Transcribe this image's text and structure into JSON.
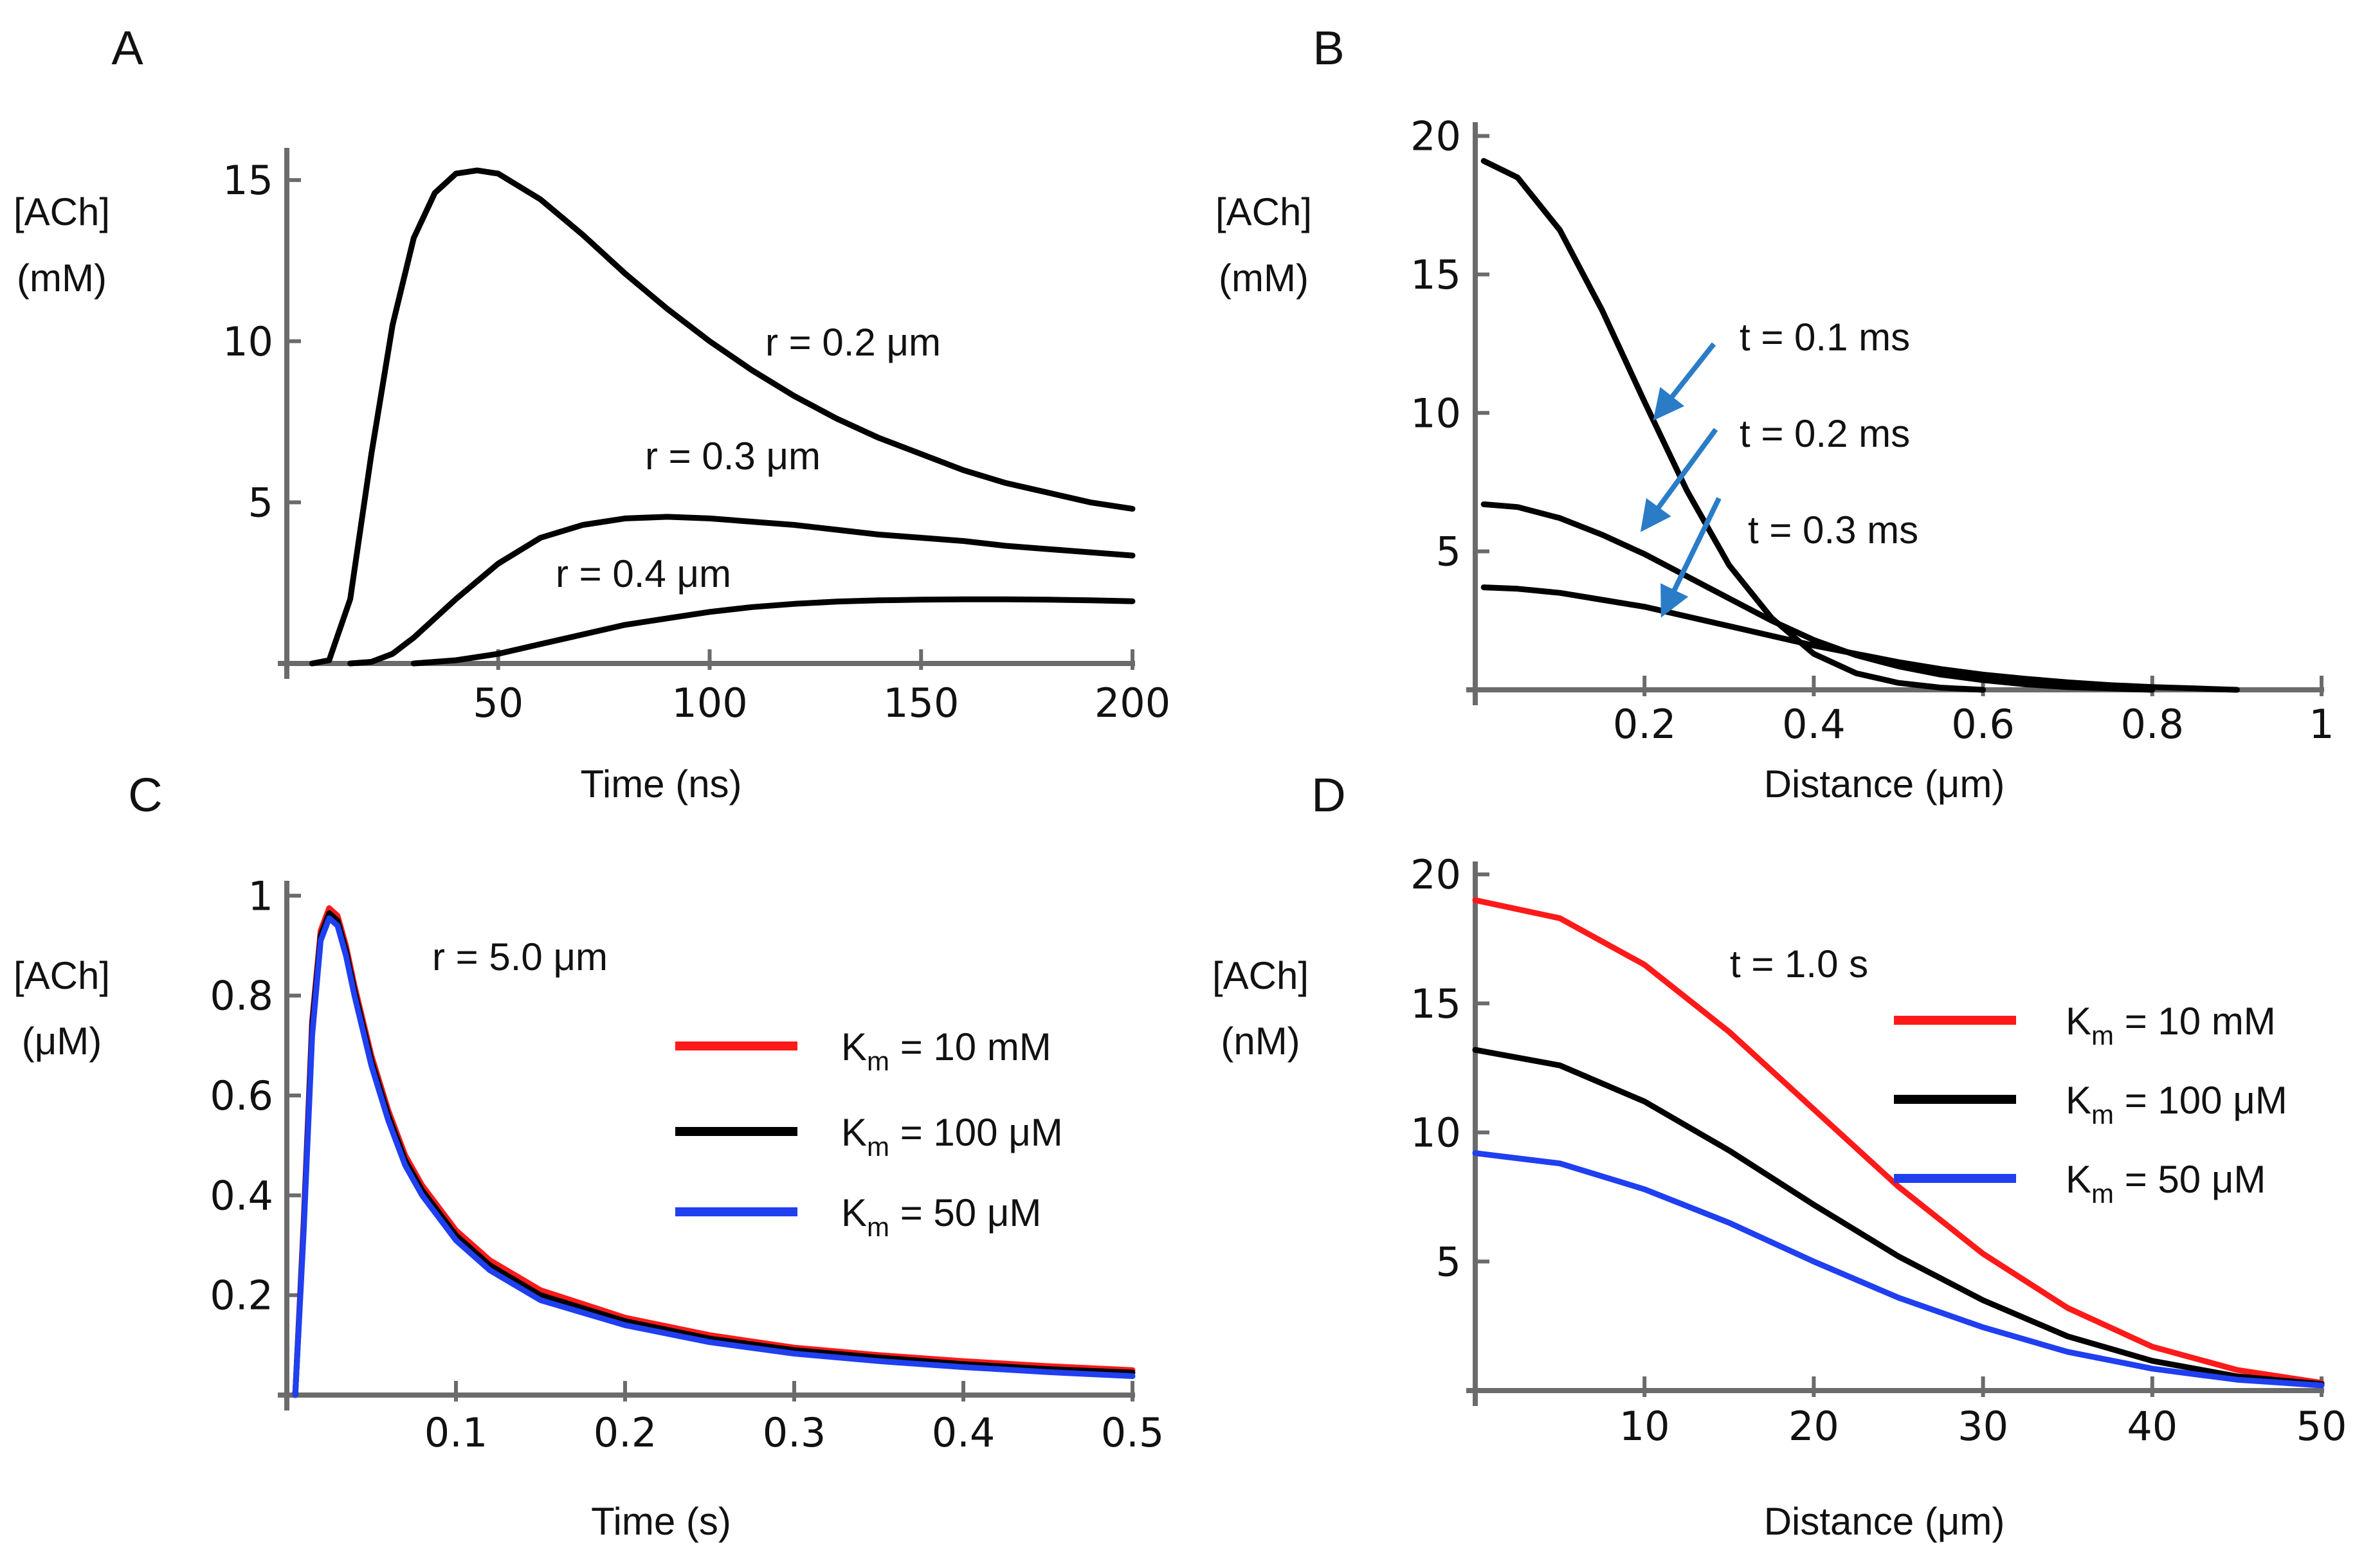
{
  "chart_data": [
    {
      "panel": "A",
      "type": "line",
      "xlabel": "Time (ns)",
      "ylabel": [
        "[ACh]",
        "(mM)"
      ],
      "xlim": [
        0,
        200
      ],
      "ylim": [
        0,
        16
      ],
      "xticks": [
        50,
        100,
        150,
        200
      ],
      "yticks": [
        5,
        10,
        15
      ],
      "series": [
        {
          "name": "r = 0.2 μm",
          "color": "#000000",
          "x": [
            6,
            10,
            15,
            20,
            25,
            30,
            35,
            40,
            45,
            50,
            60,
            70,
            80,
            90,
            100,
            110,
            120,
            130,
            140,
            150,
            160,
            170,
            180,
            190,
            200
          ],
          "y": [
            0,
            0.1,
            2.0,
            6.5,
            10.5,
            13.2,
            14.6,
            15.2,
            15.3,
            15.2,
            14.4,
            13.3,
            12.1,
            11.0,
            10.0,
            9.1,
            8.3,
            7.6,
            7.0,
            6.5,
            6.0,
            5.6,
            5.3,
            5.0,
            4.8
          ]
        },
        {
          "name": "r = 0.3 μm",
          "color": "#000000",
          "x": [
            15,
            20,
            25,
            30,
            40,
            50,
            60,
            70,
            80,
            90,
            100,
            110,
            120,
            130,
            140,
            150,
            160,
            170,
            180,
            190,
            200
          ],
          "y": [
            0,
            0.05,
            0.3,
            0.8,
            2.0,
            3.1,
            3.9,
            4.3,
            4.5,
            4.55,
            4.5,
            4.4,
            4.3,
            4.15,
            4.0,
            3.9,
            3.8,
            3.65,
            3.55,
            3.45,
            3.35
          ]
        },
        {
          "name": "r = 0.4 μm",
          "color": "#000000",
          "x": [
            30,
            40,
            50,
            60,
            70,
            80,
            90,
            100,
            110,
            120,
            130,
            140,
            150,
            160,
            170,
            180,
            190,
            200
          ],
          "y": [
            0,
            0.1,
            0.3,
            0.6,
            0.9,
            1.2,
            1.4,
            1.6,
            1.75,
            1.85,
            1.92,
            1.96,
            1.98,
            1.99,
            1.99,
            1.98,
            1.96,
            1.93
          ]
        }
      ],
      "annotations": [
        "r = 0.2 μm",
        "r = 0.3 μm",
        "r = 0.4 μm"
      ]
    },
    {
      "panel": "B",
      "type": "line",
      "xlabel": "Distance (μm)",
      "ylabel": [
        "[ACh]",
        "(mM)"
      ],
      "xlim": [
        0,
        1.0
      ],
      "ylim": [
        0,
        20.5
      ],
      "xticks": [
        0.2,
        0.4,
        0.6,
        0.8,
        1.0
      ],
      "yticks": [
        5,
        10,
        15,
        20
      ],
      "series": [
        {
          "name": "t = 0.1 ms",
          "color": "#000000",
          "x": [
            0.01,
            0.05,
            0.1,
            0.15,
            0.2,
            0.25,
            0.3,
            0.35,
            0.4,
            0.45,
            0.5,
            0.55,
            0.6
          ],
          "y": [
            19.1,
            18.5,
            16.6,
            13.7,
            10.4,
            7.2,
            4.5,
            2.6,
            1.3,
            0.6,
            0.25,
            0.08,
            0
          ]
        },
        {
          "name": "t = 0.2 ms",
          "color": "#000000",
          "x": [
            0.01,
            0.05,
            0.1,
            0.15,
            0.2,
            0.25,
            0.3,
            0.35,
            0.4,
            0.45,
            0.5,
            0.55,
            0.6,
            0.65,
            0.7,
            0.75,
            0.8
          ],
          "y": [
            6.7,
            6.6,
            6.2,
            5.6,
            4.9,
            4.1,
            3.3,
            2.5,
            1.8,
            1.25,
            0.85,
            0.55,
            0.35,
            0.2,
            0.1,
            0.05,
            0
          ]
        },
        {
          "name": "t = 0.3 ms",
          "color": "#000000",
          "x": [
            0.01,
            0.05,
            0.1,
            0.15,
            0.2,
            0.25,
            0.3,
            0.35,
            0.4,
            0.45,
            0.5,
            0.55,
            0.6,
            0.65,
            0.7,
            0.75,
            0.8,
            0.85,
            0.9
          ],
          "y": [
            3.7,
            3.65,
            3.5,
            3.25,
            3.0,
            2.65,
            2.3,
            1.95,
            1.6,
            1.3,
            1.0,
            0.75,
            0.55,
            0.4,
            0.27,
            0.17,
            0.1,
            0.05,
            0
          ]
        }
      ],
      "annotations": [
        "t = 0.1 ms",
        "t = 0.2 ms",
        "t = 0.3 ms"
      ],
      "arrow_color": "#2a7cc7"
    },
    {
      "panel": "C",
      "type": "line",
      "xlabel": "Time (s)",
      "ylabel": [
        "[ACh]",
        "(μM)"
      ],
      "xlim": [
        0,
        0.5
      ],
      "ylim": [
        0,
        1.03
      ],
      "xticks": [
        0.1,
        0.2,
        0.3,
        0.4,
        0.5
      ],
      "yticks": [
        0.2,
        0.4,
        0.6,
        0.8,
        1.0
      ],
      "annotation": "r = 5.0 μm",
      "series": [
        {
          "name": "K",
          "sub": "m",
          "suffix": " = 10 mM",
          "color": "#ff1a1a",
          "x": [
            0.005,
            0.01,
            0.015,
            0.02,
            0.025,
            0.03,
            0.035,
            0.04,
            0.05,
            0.06,
            0.07,
            0.08,
            0.1,
            0.12,
            0.15,
            0.2,
            0.25,
            0.3,
            0.35,
            0.4,
            0.45,
            0.5
          ],
          "y": [
            0,
            0.35,
            0.75,
            0.93,
            0.975,
            0.96,
            0.9,
            0.82,
            0.68,
            0.57,
            0.48,
            0.42,
            0.33,
            0.27,
            0.21,
            0.155,
            0.12,
            0.095,
            0.08,
            0.068,
            0.058,
            0.05
          ]
        },
        {
          "name": "K",
          "sub": "m",
          "suffix": " = 100 μM",
          "color": "#000000",
          "x": [
            0.005,
            0.01,
            0.015,
            0.02,
            0.025,
            0.03,
            0.035,
            0.04,
            0.05,
            0.06,
            0.07,
            0.08,
            0.1,
            0.12,
            0.15,
            0.2,
            0.25,
            0.3,
            0.35,
            0.4,
            0.45,
            0.5
          ],
          "y": [
            0,
            0.34,
            0.74,
            0.92,
            0.965,
            0.95,
            0.89,
            0.81,
            0.67,
            0.56,
            0.47,
            0.41,
            0.32,
            0.26,
            0.2,
            0.148,
            0.113,
            0.09,
            0.075,
            0.062,
            0.052,
            0.045
          ]
        },
        {
          "name": "K",
          "sub": "m",
          "suffix": " = 50 μM",
          "color": "#1f3ff0",
          "x": [
            0.005,
            0.01,
            0.015,
            0.02,
            0.025,
            0.03,
            0.035,
            0.04,
            0.05,
            0.06,
            0.07,
            0.08,
            0.1,
            0.12,
            0.15,
            0.2,
            0.25,
            0.3,
            0.35,
            0.4,
            0.45,
            0.5
          ],
          "y": [
            0,
            0.33,
            0.72,
            0.91,
            0.955,
            0.94,
            0.88,
            0.8,
            0.66,
            0.55,
            0.46,
            0.4,
            0.31,
            0.25,
            0.19,
            0.14,
            0.106,
            0.083,
            0.068,
            0.056,
            0.046,
            0.038
          ]
        }
      ]
    },
    {
      "panel": "D",
      "type": "line",
      "xlabel": "Distance (μm)",
      "ylabel": [
        "[ACh]",
        "(nM)"
      ],
      "xlim": [
        0,
        50
      ],
      "ylim": [
        0,
        20.5
      ],
      "xticks": [
        10,
        20,
        30,
        40,
        50
      ],
      "yticks": [
        5,
        10,
        15,
        20
      ],
      "annotation": "t = 1.0 s",
      "series": [
        {
          "name": "K",
          "sub": "m",
          "suffix": " = 10 mM",
          "color": "#ff1a1a",
          "x": [
            0,
            5,
            10,
            15,
            20,
            25,
            30,
            35,
            40,
            45,
            50
          ],
          "y": [
            19.0,
            18.3,
            16.5,
            13.9,
            10.9,
            7.9,
            5.3,
            3.2,
            1.7,
            0.8,
            0.3
          ]
        },
        {
          "name": "K",
          "sub": "m",
          "suffix": " = 100 μM",
          "color": "#000000",
          "x": [
            0,
            5,
            10,
            15,
            20,
            25,
            30,
            35,
            40,
            45,
            50
          ],
          "y": [
            13.2,
            12.6,
            11.2,
            9.3,
            7.2,
            5.2,
            3.5,
            2.1,
            1.15,
            0.55,
            0.25
          ]
        },
        {
          "name": "K",
          "sub": "m",
          "suffix": " = 50 μM",
          "color": "#1f3ff0",
          "x": [
            0,
            5,
            10,
            15,
            20,
            25,
            30,
            35,
            40,
            45,
            50
          ],
          "y": [
            9.2,
            8.8,
            7.8,
            6.5,
            5.0,
            3.6,
            2.45,
            1.5,
            0.85,
            0.42,
            0.2
          ]
        }
      ]
    }
  ]
}
